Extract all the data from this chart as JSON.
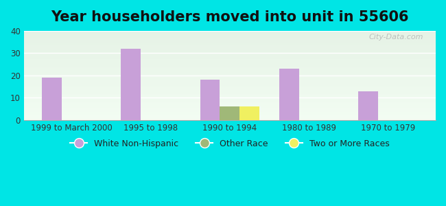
{
  "title": "Year householders moved into unit in 55606",
  "background_color": "#00e5e5",
  "categories": [
    "1999 to March 2000",
    "1995 to 1998",
    "1990 to 1994",
    "1980 to 1989",
    "1970 to 1979"
  ],
  "series": [
    {
      "name": "White Non-Hispanic",
      "color": "#c8a0d8",
      "values": [
        19,
        32,
        18,
        23,
        13
      ]
    },
    {
      "name": "Other Race",
      "color": "#a0b878",
      "values": [
        0,
        0,
        6,
        0,
        0
      ]
    },
    {
      "name": "Two or More Races",
      "color": "#f0f060",
      "values": [
        0,
        0,
        6,
        0,
        0
      ]
    }
  ],
  "ylim": [
    0,
    40
  ],
  "yticks": [
    0,
    10,
    20,
    30,
    40
  ],
  "title_fontsize": 15,
  "tick_fontsize": 8.5,
  "legend_fontsize": 9,
  "bar_width": 0.25,
  "watermark": "City-Data.com"
}
